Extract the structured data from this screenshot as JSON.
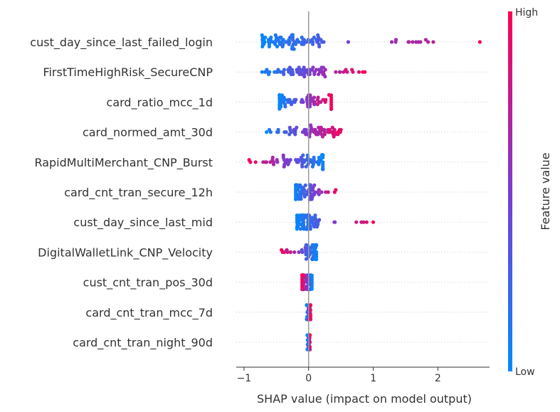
{
  "chart_data": {
    "type": "scatter",
    "subtype": "beeswarm",
    "xlabel": "SHAP value (impact on model output)",
    "xlim": [
      -1.12,
      2.8
    ],
    "xticks": [
      -1,
      0,
      1,
      2
    ],
    "colorbar": {
      "title": "Feature value",
      "high_label": "High",
      "low_label": "Low",
      "low_color": "#008bfb",
      "mid_color": "#7c3cd0",
      "high_color": "#ff0052"
    },
    "zero_line": 0,
    "features": [
      {
        "name": "cust_day_since_last_failed_login",
        "min": -0.72,
        "max": 2.65,
        "core": [
          -0.7,
          0.25
        ],
        "direction": 1,
        "density": 1.3
      },
      {
        "name": "FirstTimeHighRisk_SecureCNP",
        "min": -0.72,
        "max": 0.87,
        "core": [
          -0.4,
          0.3
        ],
        "direction": 1,
        "density": 1.0
      },
      {
        "name": "card_ratio_mcc_1d",
        "min": -0.45,
        "max": 0.35,
        "core": [
          -0.45,
          0.35
        ],
        "direction": 1,
        "density": 0.9
      },
      {
        "name": "card_normed_amt_30d",
        "min": -0.65,
        "max": 0.5,
        "core": [
          -0.35,
          0.35
        ],
        "direction": 1,
        "density": 0.9
      },
      {
        "name": "RapidMultiMerchant_CNP_Burst",
        "min": -0.92,
        "max": 0.22,
        "core": [
          -0.4,
          0.22
        ],
        "direction": -1,
        "density": 1.0
      },
      {
        "name": "card_cnt_tran_secure_12h",
        "min": -0.2,
        "max": 0.42,
        "core": [
          -0.2,
          0.1
        ],
        "direction": 1,
        "density": 0.9
      },
      {
        "name": "cust_day_since_last_mid",
        "min": -0.18,
        "max": 1.0,
        "core": [
          -0.18,
          0.15
        ],
        "direction": 1,
        "density": 0.9
      },
      {
        "name": "DigitalWalletLink_CNP_Velocity",
        "min": -0.42,
        "max": 0.12,
        "core": [
          -0.05,
          0.12
        ],
        "direction": -1,
        "density": 0.7
      },
      {
        "name": "cust_cnt_tran_pos_30d",
        "min": -0.1,
        "max": 0.05,
        "core": [
          -0.1,
          0.05
        ],
        "direction": -1,
        "density": 0.6
      },
      {
        "name": "card_cnt_tran_mcc_7d",
        "min": -0.03,
        "max": 0.03,
        "core": [
          -0.03,
          0.03
        ],
        "direction": 1,
        "density": 0.5
      },
      {
        "name": "card_cnt_tran_night_90d",
        "min": -0.02,
        "max": 0.02,
        "core": [
          -0.02,
          0.02
        ],
        "direction": 1,
        "density": 0.5
      }
    ]
  }
}
